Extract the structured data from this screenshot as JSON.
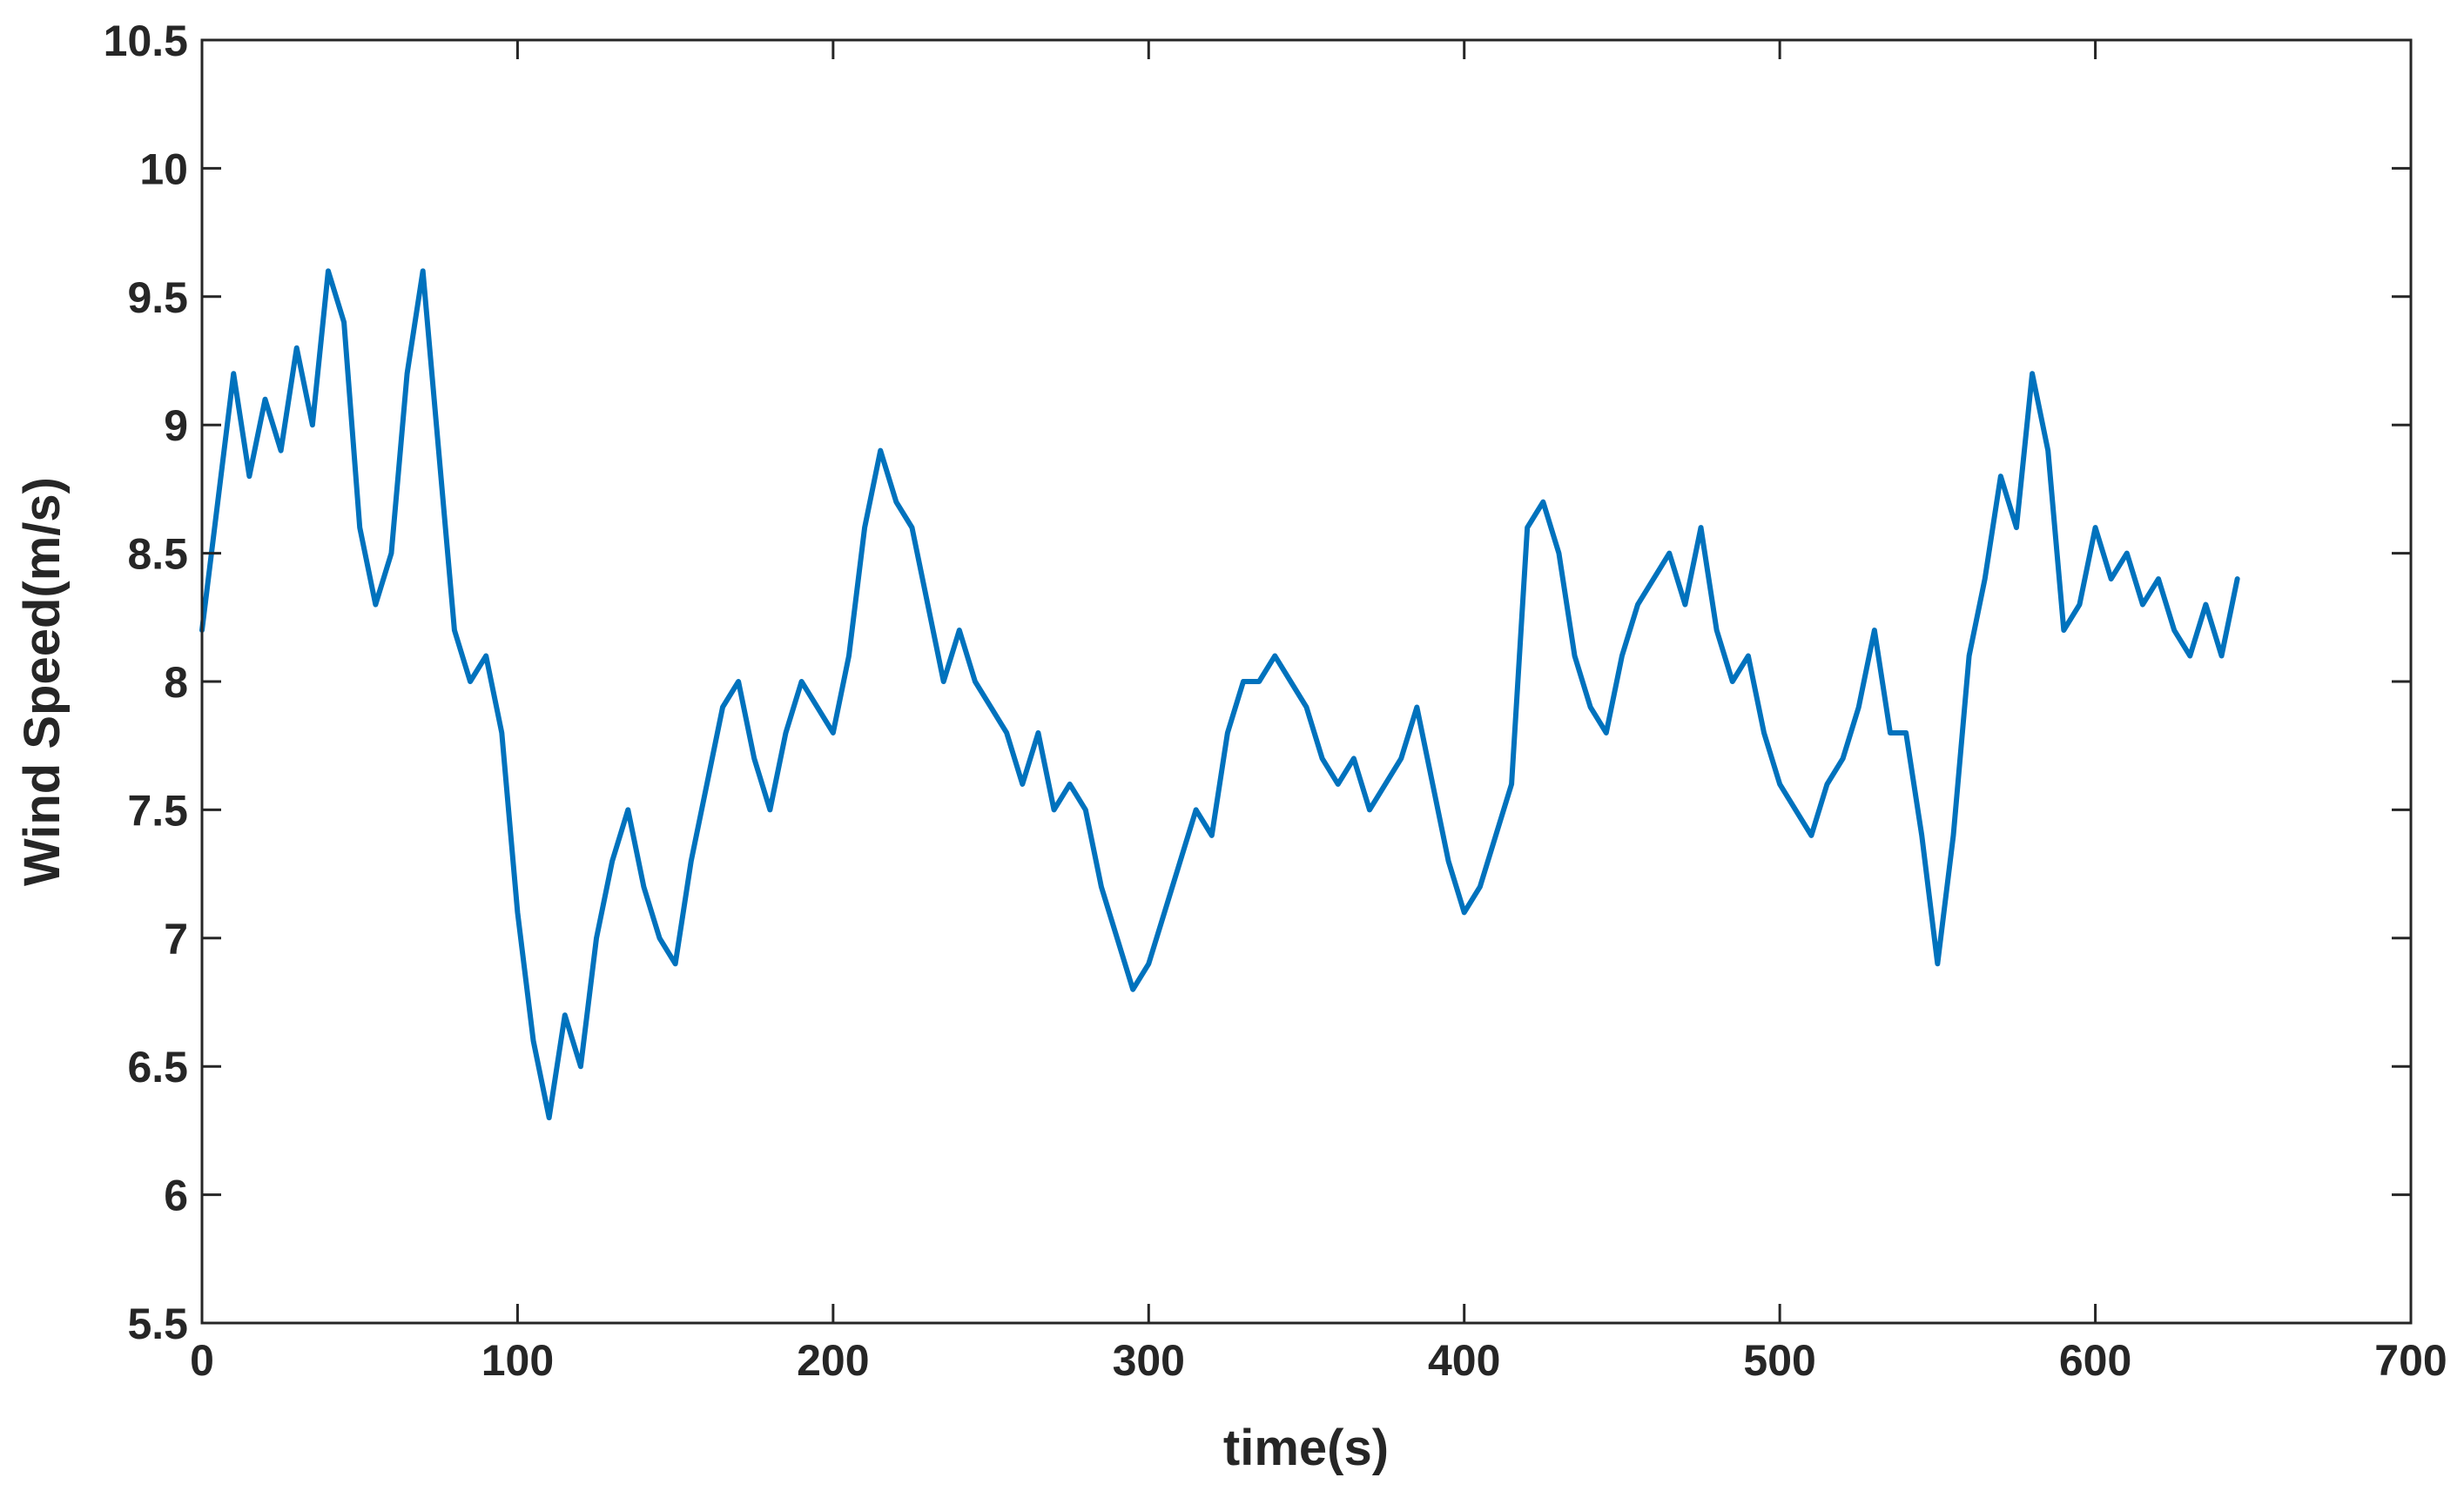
{
  "chart_data": {
    "type": "line",
    "title": "",
    "xlabel": "time(s)",
    "ylabel": "Wind Speed(m/s)",
    "xlim": [
      0,
      700
    ],
    "ylim": [
      5.5,
      10.5
    ],
    "xticks": [
      0,
      100,
      200,
      300,
      400,
      500,
      600,
      700
    ],
    "yticks": [
      5.5,
      6,
      6.5,
      7,
      7.5,
      8,
      8.5,
      9,
      9.5,
      10,
      10.5
    ],
    "xtick_labels": [
      "0",
      "100",
      "200",
      "300",
      "400",
      "500",
      "600",
      "700"
    ],
    "ytick_labels": [
      "5.5",
      "6",
      "6.5",
      "7",
      "7.5",
      "8",
      "8.5",
      "9",
      "9.5",
      "10",
      "10.5"
    ],
    "grid": false,
    "legend": "none",
    "colors": {
      "line": "#0072BD",
      "axis": "#262626",
      "background": "#ffffff"
    },
    "series": [
      {
        "x": [
          0,
          5,
          10,
          15,
          20,
          25,
          30,
          35,
          40,
          45,
          50,
          55,
          60,
          65,
          70,
          75,
          80,
          85,
          90,
          95,
          100,
          105,
          110,
          115,
          120,
          125,
          130,
          135,
          140,
          145,
          150,
          155,
          160,
          165,
          170,
          175,
          180,
          185,
          190,
          195,
          200,
          205,
          210,
          215,
          220,
          225,
          230,
          235,
          240,
          245,
          250,
          255,
          260,
          265,
          270,
          275,
          280,
          285,
          290,
          295,
          300,
          305,
          310,
          315,
          320,
          325,
          330,
          335,
          340,
          345,
          350,
          355,
          360,
          365,
          370,
          375,
          380,
          385,
          390,
          395,
          400,
          405,
          410,
          415,
          420,
          425,
          430,
          435,
          440,
          445,
          450,
          455,
          460,
          465,
          470,
          475,
          480,
          485,
          490,
          495,
          500,
          505,
          510,
          515,
          520,
          525,
          530,
          535,
          540,
          545,
          550,
          555,
          560,
          565,
          570,
          575,
          580,
          585,
          590,
          595,
          600,
          605,
          610,
          615,
          620,
          625,
          630,
          635,
          640,
          645
        ],
        "values": [
          8.2,
          8.7,
          9.2,
          8.8,
          9.1,
          8.9,
          9.3,
          9.0,
          9.6,
          9.4,
          8.6,
          8.3,
          8.5,
          9.2,
          9.6,
          8.9,
          8.2,
          8.0,
          8.1,
          7.8,
          7.1,
          6.6,
          6.3,
          6.7,
          6.5,
          7.0,
          7.3,
          7.5,
          7.2,
          7.0,
          6.9,
          7.3,
          7.6,
          7.9,
          8.0,
          7.7,
          7.5,
          7.8,
          8.0,
          7.9,
          7.8,
          8.1,
          8.6,
          8.9,
          8.7,
          8.6,
          8.3,
          8.0,
          8.2,
          8.0,
          7.9,
          7.8,
          7.6,
          7.8,
          7.5,
          7.6,
          7.5,
          7.2,
          7.0,
          6.8,
          6.9,
          7.1,
          7.3,
          7.5,
          7.4,
          7.8,
          8.0,
          8.0,
          8.1,
          8.0,
          7.9,
          7.7,
          7.6,
          7.7,
          7.5,
          7.6,
          7.7,
          7.9,
          7.6,
          7.3,
          7.1,
          7.2,
          7.4,
          7.6,
          8.6,
          8.7,
          8.5,
          8.1,
          7.9,
          7.8,
          8.1,
          8.3,
          8.4,
          8.5,
          8.3,
          8.6,
          8.2,
          8.0,
          8.1,
          7.8,
          7.6,
          7.5,
          7.4,
          7.6,
          7.7,
          7.9,
          8.2,
          7.8,
          7.8,
          7.4,
          6.9,
          7.4,
          8.1,
          8.4,
          8.8,
          8.6,
          9.2,
          8.9,
          8.2,
          8.3,
          8.6,
          8.4,
          8.5,
          8.3,
          8.4,
          8.2,
          8.1,
          8.3,
          8.1,
          8.4
        ]
      }
    ]
  }
}
